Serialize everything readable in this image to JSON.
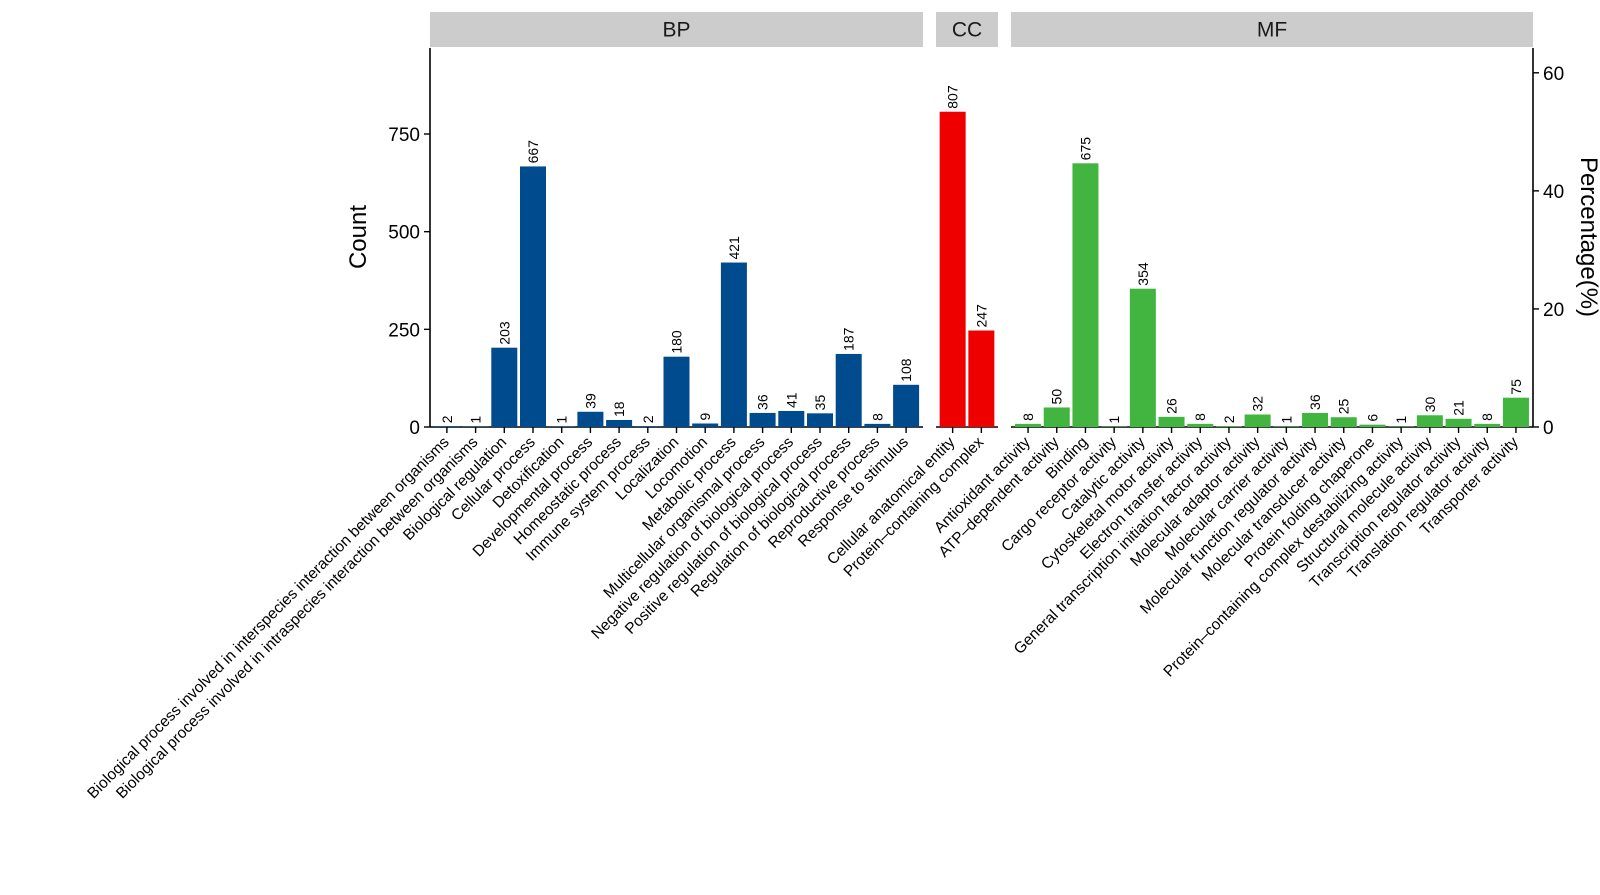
{
  "chart_data": {
    "type": "bar",
    "ylabel": "Count",
    "y2label": "Percentage(%)",
    "ylim": [
      0,
      950
    ],
    "yticks": [
      0,
      250,
      500,
      750
    ],
    "y2ticks": [
      0,
      20,
      40,
      60
    ],
    "y2lim": [
      0,
      64.2
    ],
    "facets": [
      {
        "name": "BP",
        "color": "#004B8D",
        "categories": [
          "Biological process involved in interspecies interaction between organisms",
          "Biological process involved in intraspecies interaction between organisms",
          "Biological regulation",
          "Cellular process",
          "Detoxification",
          "Developmental process",
          "Homeostatic process",
          "Immune system process",
          "Localization",
          "Locomotion",
          "Metabolic process",
          "Multicellular organismal process",
          "Negative regulation of biological process",
          "Positive regulation of biological process",
          "Regulation of biological process",
          "Reproductive process",
          "Response to stimulus"
        ],
        "values": [
          2,
          1,
          203,
          667,
          1,
          39,
          18,
          2,
          180,
          9,
          421,
          36,
          41,
          35,
          187,
          8,
          108
        ]
      },
      {
        "name": "CC",
        "color": "#EE0000",
        "categories": [
          "Cellular anatomical entity",
          "Protein–containing complex"
        ],
        "values": [
          807,
          247
        ]
      },
      {
        "name": "MF",
        "color": "#42B540",
        "categories": [
          "Antioxidant activity",
          "ATP–dependent activity",
          "Binding",
          "Cargo receptor activity",
          "Catalytic activity",
          "Cytoskeletal motor activity",
          "Electron transfer activity",
          "General transcription initiation factor activity",
          "Molecular adaptor activity",
          "Molecular carrier activity",
          "Molecular function regulator activity",
          "Molecular transducer activity",
          "Protein folding chaperone",
          "Protein–containing complex destabilizing activity",
          "Structural molecule activity",
          "Transcription regulator activity",
          "Translation regulator activity",
          "Transporter activity"
        ],
        "values": [
          8,
          50,
          675,
          1,
          354,
          26,
          8,
          2,
          32,
          1,
          36,
          25,
          6,
          1,
          30,
          21,
          8,
          75
        ]
      }
    ]
  }
}
